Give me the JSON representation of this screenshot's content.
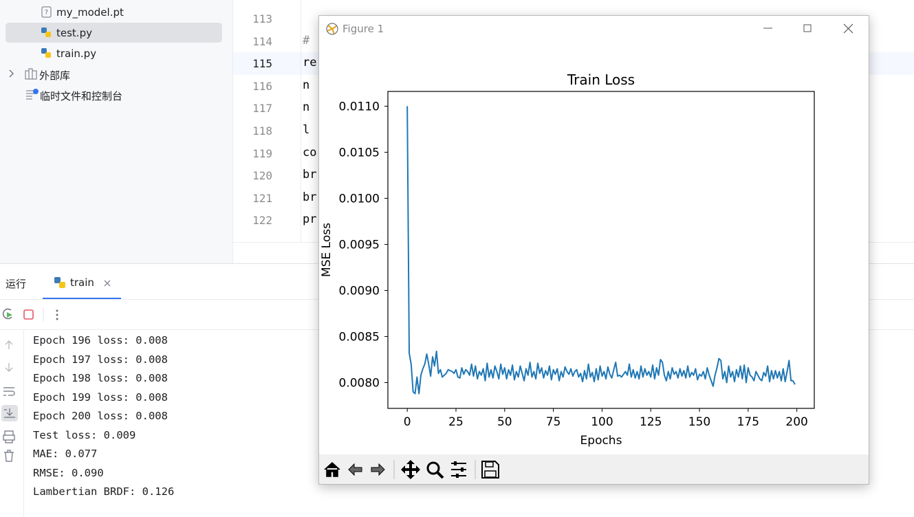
{
  "project_tree": {
    "items": [
      "my_model.pt",
      "test.py",
      "train.py",
      "外部库",
      "临时文件和控制台"
    ]
  },
  "editor": {
    "lines": [
      {
        "number": "113"
      },
      {
        "number": "114",
        "code": "#"
      },
      {
        "number": "115",
        "code": "re"
      },
      {
        "number": "116",
        "code": "n"
      },
      {
        "number": "117",
        "code": "n"
      },
      {
        "number": "118",
        "code": "l"
      },
      {
        "number": "119",
        "code": "co"
      },
      {
        "number": "120",
        "code": "br"
      },
      {
        "number": "121",
        "code": "br"
      },
      {
        "number": "122",
        "code": "pr"
      }
    ]
  },
  "run_panel": {
    "tab_title": "运行",
    "run_tab": "train",
    "console": [
      "Epoch 196 loss: 0.008",
      "Epoch 197 loss: 0.008",
      "Epoch 198 loss: 0.008",
      "Epoch 199 loss: 0.008",
      "Epoch 200 loss: 0.008",
      "Test loss: 0.009",
      "MAE: 0.077",
      "RMSE: 0.090",
      "Lambertian BRDF: 0.126"
    ]
  },
  "figure_window": {
    "title": "Figure 1"
  },
  "chart_data": {
    "type": "line",
    "title": "Train Loss",
    "x_label": "Epochs",
    "y_label": "MSE Loss",
    "xlim": [
      -9.95,
      208.95
    ],
    "ylim": [
      0.00772,
      0.01116
    ],
    "xticks": [
      0,
      25,
      50,
      75,
      100,
      125,
      150,
      175,
      200
    ],
    "yticks": [
      {
        "value": 0.008,
        "label": "0.0080"
      },
      {
        "value": 0.0085,
        "label": "0.0085"
      },
      {
        "value": 0.009,
        "label": "0.0090"
      },
      {
        "value": 0.0095,
        "label": "0.0095"
      },
      {
        "value": 0.01,
        "label": "0.0100"
      },
      {
        "value": 0.0105,
        "label": "0.0105"
      },
      {
        "value": 0.011,
        "label": "0.0110"
      }
    ],
    "x": [
      0,
      1,
      2,
      3,
      4,
      5,
      6,
      7,
      8,
      9,
      10,
      11,
      12,
      13,
      14,
      15,
      16,
      17,
      18,
      19,
      20,
      21,
      22,
      23,
      24,
      25,
      26,
      27,
      28,
      29,
      30,
      31,
      32,
      33,
      34,
      35,
      36,
      37,
      38,
      39,
      40,
      41,
      42,
      43,
      44,
      45,
      46,
      47,
      48,
      49,
      50,
      51,
      52,
      53,
      54,
      55,
      56,
      57,
      58,
      59,
      60,
      61,
      62,
      63,
      64,
      65,
      66,
      67,
      68,
      69,
      70,
      71,
      72,
      73,
      74,
      75,
      76,
      77,
      78,
      79,
      80,
      81,
      82,
      83,
      84,
      85,
      86,
      87,
      88,
      89,
      90,
      91,
      92,
      93,
      94,
      95,
      96,
      97,
      98,
      99,
      100,
      101,
      102,
      103,
      104,
      105,
      106,
      107,
      108,
      109,
      110,
      111,
      112,
      113,
      114,
      115,
      116,
      117,
      118,
      119,
      120,
      121,
      122,
      123,
      124,
      125,
      126,
      127,
      128,
      129,
      130,
      131,
      132,
      133,
      134,
      135,
      136,
      137,
      138,
      139,
      140,
      141,
      142,
      143,
      144,
      145,
      146,
      147,
      148,
      149,
      150,
      151,
      152,
      153,
      154,
      155,
      156,
      157,
      158,
      159,
      160,
      161,
      162,
      163,
      164,
      165,
      166,
      167,
      168,
      169,
      170,
      171,
      172,
      173,
      174,
      175,
      176,
      177,
      178,
      179,
      180,
      181,
      182,
      183,
      184,
      185,
      186,
      187,
      188,
      189,
      190,
      191,
      192,
      193,
      194,
      195,
      196,
      197,
      198,
      199
    ],
    "series": [
      {
        "color": "#1f77b4",
        "values": [
          0.011,
          0.00832,
          0.0082,
          0.0079,
          0.00788,
          0.00806,
          0.00788,
          0.00808,
          0.00815,
          0.0082,
          0.00831,
          0.0082,
          0.00807,
          0.00828,
          0.00818,
          0.00834,
          0.0081,
          0.00814,
          0.00806,
          0.00808,
          0.0081,
          0.00814,
          0.00813,
          0.00812,
          0.0081,
          0.00814,
          0.00806,
          0.00805,
          0.00816,
          0.00809,
          0.00814,
          0.00812,
          0.00808,
          0.0082,
          0.00807,
          0.00818,
          0.00804,
          0.00812,
          0.00808,
          0.00815,
          0.00802,
          0.00821,
          0.00806,
          0.00814,
          0.00805,
          0.00818,
          0.00812,
          0.00804,
          0.0082,
          0.00809,
          0.00816,
          0.00804,
          0.00814,
          0.00808,
          0.00819,
          0.00803,
          0.00812,
          0.00806,
          0.00818,
          0.0081,
          0.00802,
          0.00815,
          0.00808,
          0.00822,
          0.00806,
          0.00812,
          0.00804,
          0.00821,
          0.0081,
          0.00816,
          0.00805,
          0.00813,
          0.00808,
          0.00818,
          0.00803,
          0.00814,
          0.00809,
          0.00815,
          0.00802,
          0.00812,
          0.00806,
          0.00817,
          0.00812,
          0.00809,
          0.00815,
          0.00807,
          0.00812,
          0.00814,
          0.00806,
          0.0081,
          0.00801,
          0.00813,
          0.00804,
          0.0082,
          0.00806,
          0.00811,
          0.00801,
          0.00815,
          0.00803,
          0.00818,
          0.00807,
          0.00812,
          0.00804,
          0.00817,
          0.00809,
          0.00805,
          0.00814,
          0.00822,
          0.00807,
          0.00808,
          0.00806,
          0.00809,
          0.00812,
          0.00808,
          0.0082,
          0.00806,
          0.00814,
          0.00805,
          0.00812,
          0.00804,
          0.00818,
          0.00806,
          0.00815,
          0.00808,
          0.00812,
          0.00806,
          0.00819,
          0.00804,
          0.00816,
          0.00808,
          0.00825,
          0.00822,
          0.00808,
          0.00802,
          0.00812,
          0.00804,
          0.00816,
          0.00809,
          0.00812,
          0.00805,
          0.00815,
          0.00807,
          0.00813,
          0.00805,
          0.00818,
          0.00806,
          0.00811,
          0.00808,
          0.00815,
          0.00803,
          0.00809,
          0.00807,
          0.00812,
          0.00804,
          0.00816,
          0.00808,
          0.00802,
          0.00796,
          0.00808,
          0.00816,
          0.00826,
          0.00824,
          0.00804,
          0.00812,
          0.008,
          0.00818,
          0.00806,
          0.00812,
          0.00801,
          0.00814,
          0.00806,
          0.00818,
          0.00804,
          0.00819,
          0.008,
          0.00816,
          0.00808,
          0.00806,
          0.00802,
          0.00812,
          0.00808,
          0.00804,
          0.00802,
          0.00811,
          0.00807,
          0.00818,
          0.00801,
          0.00813,
          0.00804,
          0.00813,
          0.00805,
          0.00812,
          0.00802,
          0.00815,
          0.00801,
          0.00812,
          0.00824,
          0.00802,
          0.00802,
          0.00798
        ]
      }
    ]
  }
}
